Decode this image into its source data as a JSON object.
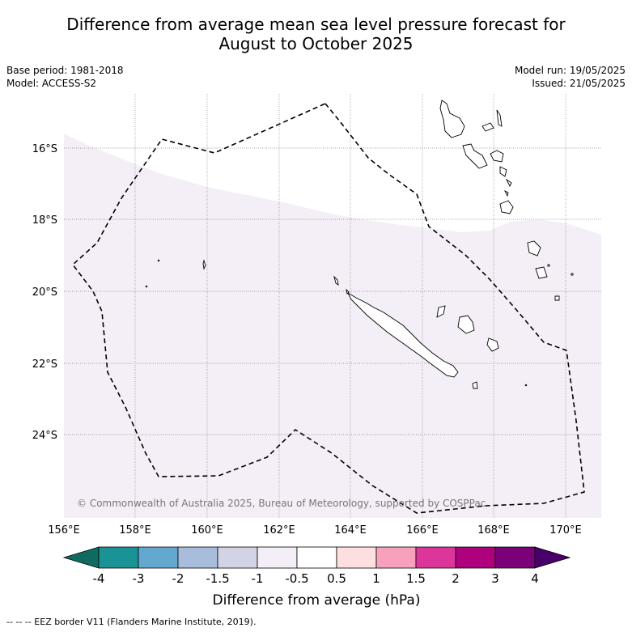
{
  "title": {
    "line1": "Difference from average mean sea level pressure forecast for",
    "line2": "August to October 2025"
  },
  "meta_left": {
    "base_period": "Base period: 1981-2018",
    "model": "Model: ACCESS-S2"
  },
  "meta_right": {
    "model_run": "Model run: 19/05/2025",
    "issued": "Issued: 21/05/2025"
  },
  "map": {
    "lon_labels": [
      "156°E",
      "158°E",
      "160°E",
      "162°E",
      "164°E",
      "166°E",
      "168°E",
      "170°E"
    ],
    "lat_labels": [
      "16°S",
      "18°S",
      "20°S",
      "22°S",
      "24°S"
    ],
    "copyright": "© Commonwealth of Australia 2025, Bureau of Meteorology, supported by COSPPac",
    "shaded_category": "-1 to -0.5 hPa",
    "shaded_color": "#f4eef6",
    "eez_style": "dashed"
  },
  "colorbar": {
    "tick_labels": [
      "-4",
      "-3",
      "-2",
      "-1.5",
      "-1",
      "-0.5",
      "0.5",
      "1",
      "1.5",
      "2",
      "3",
      "4"
    ],
    "colors": [
      "#0e6b62",
      "#1a9396",
      "#63a9cf",
      "#a8bcdc",
      "#d2d4e6",
      "#f4eef6",
      "#ffffff",
      "#fedfe0",
      "#f7a1bc",
      "#dc369a",
      "#ae017e",
      "#7a0177",
      "#49006a"
    ],
    "label": "Difference from average (hPa)"
  },
  "footer": {
    "eez_note": "--  --  -- EEZ border V11 (Flanders Marine Institute, 2019)."
  }
}
